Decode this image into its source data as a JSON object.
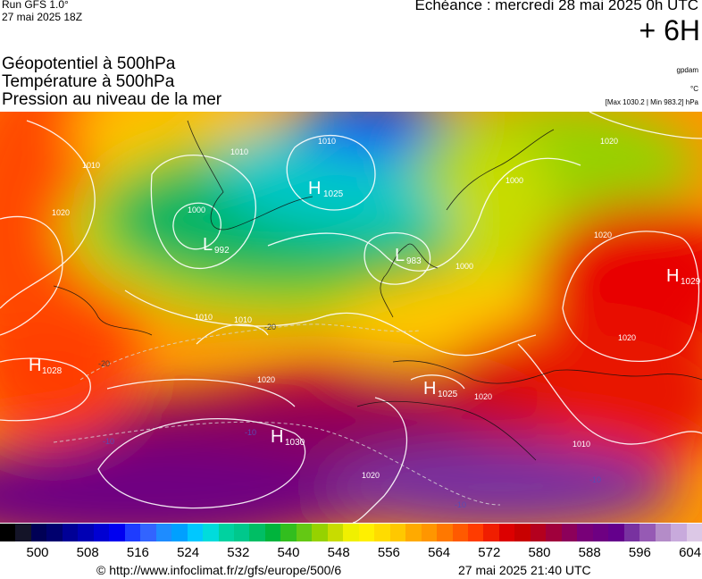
{
  "header": {
    "run_line1": "Run GFS 1.0°",
    "run_line2": "27 mai 2025 18Z",
    "echeance": "Echéance : mercredi 28 mai 2025 0h UTC",
    "lead_time": "+ 6H"
  },
  "titles": {
    "line1": "Géopotentiel à 500hPa",
    "line2": "Température à 500hPa",
    "line3": "Pression au niveau de la mer"
  },
  "units": {
    "geopotential_unit": "gpdam",
    "temperature_unit": "°C",
    "pressure_extremes": "[Max 1030.2 | Min 983.2] hPa"
  },
  "pressure_centers": [
    {
      "type": "H",
      "value": "1025"
    },
    {
      "type": "L",
      "value": "992"
    },
    {
      "type": "L",
      "value": "983"
    },
    {
      "type": "H",
      "value": "1029"
    },
    {
      "type": "H",
      "value": "1028"
    },
    {
      "type": "H",
      "value": "1025"
    },
    {
      "type": "H",
      "value": "1030"
    }
  ],
  "isobar_labels": [
    "1010",
    "1010",
    "1020",
    "1000",
    "1010",
    "1020",
    "1000",
    "1010",
    "1010",
    "1020",
    "1020",
    "1020",
    "1020",
    "1010",
    "1020",
    "1000"
  ],
  "temperature_labels": [
    "-20",
    "-20",
    "-10",
    "-10",
    "-10",
    "-10"
  ],
  "color_scale": {
    "ticks": [
      "500",
      "508",
      "516",
      "524",
      "532",
      "540",
      "548",
      "556",
      "564",
      "572",
      "580",
      "588",
      "596",
      "604"
    ],
    "colors": [
      "#000000",
      "#141428",
      "#000055",
      "#00006e",
      "#000096",
      "#0000b4",
      "#0000d2",
      "#0000f0",
      "#1e3cff",
      "#3264ff",
      "#1e8cff",
      "#00a0ff",
      "#00c8ff",
      "#00dcdc",
      "#00d2a0",
      "#00c88c",
      "#00be64",
      "#00b43c",
      "#32be1e",
      "#64c814",
      "#96d200",
      "#c8dc00",
      "#f0f000",
      "#fff000",
      "#ffdc00",
      "#ffc800",
      "#ffaa00",
      "#ff9600",
      "#ff7800",
      "#ff5a00",
      "#ff3c00",
      "#f01e00",
      "#dc0000",
      "#c80000",
      "#b4001e",
      "#a0003c",
      "#8c005a",
      "#780078",
      "#6e0082",
      "#64008c",
      "#7832a0",
      "#965ab4",
      "#b48cc8",
      "#c8aadc",
      "#dcc8e6"
    ]
  },
  "footer": {
    "copyright": "© http://www.infoclimat.fr/z/gfs/europe/500/6",
    "generated": "27 mai 2025 21:40 UTC"
  }
}
